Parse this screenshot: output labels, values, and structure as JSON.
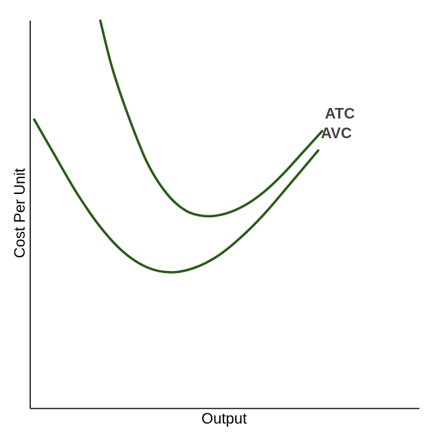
{
  "chart_data": {
    "type": "line",
    "xlabel": "Output",
    "ylabel": "Cost Per Unit",
    "xlim": [
      0,
      100
    ],
    "ylim": [
      0,
      100
    ],
    "grid": false,
    "legend": "none",
    "series": [
      {
        "name": "ATC",
        "color": "#2a5a18",
        "points": [
          [
            18,
            100
          ],
          [
            21,
            88
          ],
          [
            25,
            76
          ],
          [
            30,
            63.5
          ],
          [
            35,
            55.5
          ],
          [
            40,
            51
          ],
          [
            45,
            49.6
          ],
          [
            50,
            50.2
          ],
          [
            55,
            52.3
          ],
          [
            60,
            55.8
          ],
          [
            65,
            60.5
          ],
          [
            70,
            66
          ],
          [
            75,
            71.5
          ]
        ]
      },
      {
        "name": "AVC",
        "color": "#2a5a18",
        "points": [
          [
            1,
            74.5
          ],
          [
            6,
            65.8
          ],
          [
            12,
            55.5
          ],
          [
            18,
            46.8
          ],
          [
            24,
            40.3
          ],
          [
            30,
            36.4
          ],
          [
            36,
            35.1
          ],
          [
            42,
            36.2
          ],
          [
            48,
            39.2
          ],
          [
            54,
            44
          ],
          [
            60,
            50
          ],
          [
            66,
            57
          ],
          [
            74,
            66.5
          ]
        ]
      }
    ]
  }
}
